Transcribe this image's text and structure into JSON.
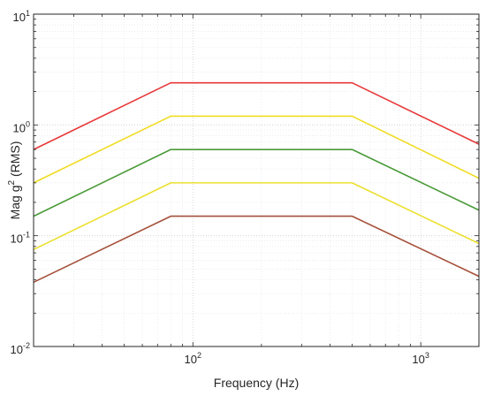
{
  "chart_data": {
    "type": "line",
    "title": "",
    "xlabel": "Frequency (Hz)",
    "ylabel": {
      "prefix": "Mag g",
      "superscript": "2",
      "suffix": " (RMS)"
    },
    "x_scale": "log",
    "y_scale": "log",
    "xlim": [
      20,
      1800
    ],
    "ylim": [
      0.01,
      10
    ],
    "grid": true,
    "x_ticks": [
      {
        "value": 100,
        "base": "10",
        "exp": "2"
      },
      {
        "value": 1000,
        "base": "10",
        "exp": "3"
      }
    ],
    "y_ticks": [
      {
        "value": 10,
        "base": "10",
        "exp": "1"
      },
      {
        "value": 1,
        "base": "10",
        "exp": "0"
      },
      {
        "value": 0.1,
        "base": "10",
        "exp": "-1"
      },
      {
        "value": 0.01,
        "base": "10",
        "exp": "-2"
      }
    ],
    "x": [
      20,
      80,
      500,
      1800
    ],
    "series": [
      {
        "color": "#e8383a",
        "values": [
          0.6,
          2.4,
          2.4,
          0.67
        ]
      },
      {
        "color": "#f0dc20",
        "values": [
          0.3,
          1.2,
          1.2,
          0.33
        ]
      },
      {
        "color": "#4a9a38",
        "values": [
          0.15,
          0.6,
          0.6,
          0.17
        ]
      },
      {
        "color": "#ece030",
        "values": [
          0.075,
          0.3,
          0.3,
          0.085
        ]
      },
      {
        "color": "#a5503a",
        "values": [
          0.038,
          0.15,
          0.15,
          0.043
        ]
      }
    ]
  }
}
